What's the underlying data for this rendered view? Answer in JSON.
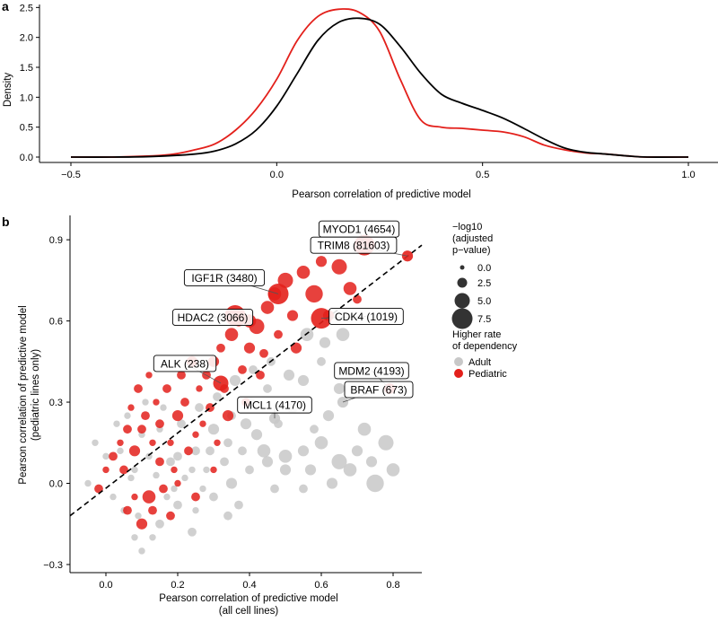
{
  "chart_data": [
    {
      "panel": "a",
      "type": "line",
      "title": "",
      "xlabel": "Pearson correlation of predictive model",
      "ylabel": "Density",
      "xlim": [
        -0.5,
        1.0
      ],
      "ylim": [
        0,
        2.55
      ],
      "xticks": [
        -0.5,
        0.0,
        0.5,
        1.0
      ],
      "xtick_labels": [
        "−0.5",
        "0.0",
        "0.5",
        "1.0"
      ],
      "yticks": [
        0.0,
        0.5,
        1.0,
        1.5,
        2.0,
        2.5
      ],
      "ytick_labels": [
        "0.0",
        "0.5",
        "1.0",
        "1.5",
        "2.0",
        "2.5"
      ],
      "series": [
        {
          "name": "Pediatric",
          "color": "#e3201b",
          "x": [
            -0.5,
            -0.4,
            -0.3,
            -0.25,
            -0.2,
            -0.15,
            -0.1,
            -0.05,
            0.0,
            0.05,
            0.1,
            0.15,
            0.2,
            0.25,
            0.3,
            0.35,
            0.4,
            0.45,
            0.5,
            0.55,
            0.6,
            0.65,
            0.7,
            0.75,
            0.8,
            0.85,
            0.9,
            1.0
          ],
          "y": [
            0.0,
            0.0,
            0.02,
            0.05,
            0.12,
            0.22,
            0.45,
            0.8,
            1.3,
            1.95,
            2.35,
            2.47,
            2.42,
            2.1,
            1.3,
            0.62,
            0.5,
            0.48,
            0.45,
            0.42,
            0.34,
            0.2,
            0.12,
            0.07,
            0.05,
            0.02,
            0.0,
            0.0
          ]
        },
        {
          "name": "Adult",
          "color": "#000000",
          "x": [
            -0.5,
            -0.4,
            -0.3,
            -0.2,
            -0.15,
            -0.1,
            -0.05,
            0.0,
            0.05,
            0.1,
            0.15,
            0.2,
            0.25,
            0.3,
            0.35,
            0.4,
            0.45,
            0.5,
            0.55,
            0.6,
            0.65,
            0.7,
            0.75,
            0.8,
            0.85,
            0.9,
            1.0
          ],
          "y": [
            0.0,
            0.0,
            0.01,
            0.05,
            0.1,
            0.22,
            0.45,
            0.85,
            1.4,
            1.95,
            2.25,
            2.32,
            2.22,
            1.85,
            1.4,
            1.05,
            0.9,
            0.78,
            0.65,
            0.48,
            0.3,
            0.15,
            0.08,
            0.05,
            0.02,
            0.0,
            0.0
          ]
        }
      ]
    },
    {
      "panel": "b",
      "type": "scatter",
      "title": "",
      "xlabel": "Pearson correlation of predictive model",
      "xlabel_sub": "(all cell lines)",
      "ylabel": "Pearson correlation of predictive model",
      "ylabel_sub": "(pediatric lines only)",
      "xlim": [
        -0.1,
        0.88
      ],
      "ylim": [
        -0.33,
        0.99
      ],
      "xticks": [
        0.0,
        0.2,
        0.4,
        0.6,
        0.8
      ],
      "xtick_labels": [
        "0.0",
        "0.2",
        "0.4",
        "0.6",
        "0.8"
      ],
      "yticks": [
        -0.3,
        0.0,
        0.3,
        0.6,
        0.9
      ],
      "ytick_labels": [
        "−0.3",
        "0.0",
        "0.3",
        "0.6",
        "0.9"
      ],
      "diagonal": {
        "style": "dashed",
        "x": [
          -0.1,
          0.88
        ],
        "y": [
          -0.12,
          0.88
        ]
      },
      "labeled_points": [
        {
          "label": "MYOD1 (4654)",
          "x": 0.72,
          "y": 0.88,
          "group": "Pediatric",
          "size": 7.5
        },
        {
          "label": "TRIM8 (81603)",
          "x": 0.84,
          "y": 0.84,
          "group": "Pediatric",
          "size": 3.0
        },
        {
          "label": "IGF1R (3480)",
          "x": 0.48,
          "y": 0.7,
          "group": "Pediatric",
          "size": 7.5
        },
        {
          "label": "HDAC2 (3066)",
          "x": 0.36,
          "y": 0.62,
          "group": "Pediatric",
          "size": 7.5
        },
        {
          "label": "CDK4 (1019)",
          "x": 0.6,
          "y": 0.61,
          "group": "Pediatric",
          "size": 7.5
        },
        {
          "label": "ALK (238)",
          "x": 0.32,
          "y": 0.37,
          "group": "Pediatric",
          "size": 5.0
        },
        {
          "label": "MDM2 (4193)",
          "x": 0.79,
          "y": 0.35,
          "group": "Pediatric",
          "size": 3.0
        },
        {
          "label": "MCL1 (4170)",
          "x": 0.47,
          "y": 0.24,
          "group": "Adult",
          "size": 3.0
        },
        {
          "label": "BRAF (673)",
          "x": 0.66,
          "y": 0.3,
          "group": "Adult",
          "size": 3.0
        }
      ],
      "legend": {
        "size_title": [
          "−log10",
          "(adjusted",
          "p−value)"
        ],
        "size_entries": [
          {
            "label": "0.0",
            "value": 0.0
          },
          {
            "label": "2.5",
            "value": 2.5
          },
          {
            "label": "5.0",
            "value": 5.0
          },
          {
            "label": "7.5",
            "value": 7.5
          }
        ],
        "color_title": [
          "Higher rate",
          "of dependency"
        ],
        "color_entries": [
          {
            "label": "Adult",
            "color": "#c8c8c8"
          },
          {
            "label": "Pediatric",
            "color": "#e3201b"
          }
        ],
        "placement": "right"
      },
      "unlabeled_points": {
        "note": "representative sample of remaining points",
        "pediatric": [
          [
            0.05,
            0.05,
            2
          ],
          [
            0.08,
            0.12,
            3
          ],
          [
            0.1,
            0.2,
            2
          ],
          [
            0.12,
            -0.05,
            4
          ],
          [
            0.15,
            0.08,
            2
          ],
          [
            0.18,
            0.15,
            1
          ],
          [
            0.2,
            0.25,
            3
          ],
          [
            0.22,
            0.3,
            2
          ],
          [
            0.25,
            0.18,
            1
          ],
          [
            0.28,
            0.4,
            2
          ],
          [
            0.3,
            0.45,
            3
          ],
          [
            0.32,
            0.5,
            2
          ],
          [
            0.35,
            0.55,
            4
          ],
          [
            0.38,
            0.42,
            2
          ],
          [
            0.4,
            0.5,
            3
          ],
          [
            0.42,
            0.58,
            5
          ],
          [
            0.45,
            0.65,
            4
          ],
          [
            0.5,
            0.75,
            5
          ],
          [
            0.55,
            0.78,
            4
          ],
          [
            0.6,
            0.82,
            3
          ],
          [
            0.65,
            0.8,
            5
          ],
          [
            0.7,
            0.68,
            2
          ],
          [
            0.58,
            0.7,
            6
          ],
          [
            0.52,
            0.62,
            3
          ],
          [
            0.48,
            0.55,
            2
          ],
          [
            0.44,
            0.48,
            2
          ],
          [
            0.37,
            0.6,
            3
          ],
          [
            0.33,
            0.35,
            2
          ],
          [
            0.27,
            0.22,
            1
          ],
          [
            0.23,
            0.12,
            2
          ],
          [
            0.19,
            0.05,
            1
          ],
          [
            0.16,
            -0.02,
            2
          ],
          [
            0.13,
            -0.1,
            2
          ],
          [
            0.1,
            -0.15,
            3
          ],
          [
            0.08,
            -0.05,
            1
          ],
          [
            0.06,
            0.2,
            2
          ],
          [
            0.04,
            0.15,
            1
          ],
          [
            0.02,
            0.1,
            2
          ],
          [
            0.0,
            0.05,
            1
          ],
          [
            -0.02,
            -0.02,
            2
          ],
          [
            0.11,
            0.25,
            2
          ],
          [
            0.14,
            0.3,
            1
          ],
          [
            0.17,
            0.35,
            2
          ],
          [
            0.21,
            0.4,
            2
          ],
          [
            0.24,
            0.45,
            3
          ],
          [
            0.26,
            0.35,
            1
          ],
          [
            0.29,
            0.28,
            2
          ],
          [
            0.31,
            0.15,
            1
          ],
          [
            0.34,
            0.25,
            3
          ],
          [
            0.39,
            0.3,
            2
          ],
          [
            0.09,
            0.35,
            2
          ],
          [
            0.12,
            0.4,
            1
          ],
          [
            0.07,
            0.28,
            1
          ],
          [
            0.15,
            0.22,
            2
          ],
          [
            0.2,
            0.0,
            1
          ],
          [
            0.25,
            -0.05,
            2
          ],
          [
            0.3,
            0.05,
            1
          ],
          [
            0.18,
            -0.12,
            2
          ],
          [
            0.13,
            0.15,
            1
          ],
          [
            0.06,
            -0.1,
            2
          ],
          [
            0.47,
            0.7,
            4
          ],
          [
            0.53,
            0.5,
            3
          ],
          [
            0.4,
            0.6,
            4
          ],
          [
            0.43,
            0.4,
            2
          ],
          [
            0.62,
            0.62,
            3
          ],
          [
            0.68,
            0.72,
            4
          ]
        ],
        "adult": [
          [
            0.0,
            0.1,
            1
          ],
          [
            -0.05,
            0.0,
            1
          ],
          [
            0.02,
            -0.05,
            1
          ],
          [
            0.05,
            -0.1,
            1
          ],
          [
            0.08,
            -0.2,
            1
          ],
          [
            0.1,
            -0.25,
            1
          ],
          [
            0.15,
            -0.15,
            2
          ],
          [
            0.2,
            -0.08,
            2
          ],
          [
            0.25,
            -0.1,
            1
          ],
          [
            0.3,
            -0.05,
            2
          ],
          [
            0.35,
            0.0,
            3
          ],
          [
            0.4,
            0.05,
            2
          ],
          [
            0.45,
            0.08,
            3
          ],
          [
            0.5,
            0.1,
            4
          ],
          [
            0.55,
            0.12,
            3
          ],
          [
            0.6,
            0.15,
            4
          ],
          [
            0.65,
            0.08,
            5
          ],
          [
            0.7,
            0.12,
            3
          ],
          [
            0.75,
            0.0,
            6
          ],
          [
            0.8,
            0.05,
            4
          ],
          [
            0.62,
            0.25,
            3
          ],
          [
            0.58,
            0.2,
            2
          ],
          [
            0.52,
            0.28,
            3
          ],
          [
            0.48,
            0.22,
            2
          ],
          [
            0.42,
            0.18,
            3
          ],
          [
            0.38,
            0.12,
            2
          ],
          [
            0.33,
            0.08,
            2
          ],
          [
            0.28,
            0.05,
            1
          ],
          [
            0.22,
            0.02,
            1
          ],
          [
            0.18,
            0.08,
            2
          ],
          [
            0.12,
            0.1,
            1
          ],
          [
            0.08,
            0.05,
            1
          ],
          [
            0.04,
            0.12,
            1
          ],
          [
            0.1,
            0.18,
            1
          ],
          [
            0.15,
            0.2,
            1
          ],
          [
            0.2,
            0.1,
            2
          ],
          [
            0.25,
            0.12,
            2
          ],
          [
            0.3,
            0.2,
            3
          ],
          [
            0.35,
            0.25,
            2
          ],
          [
            0.4,
            0.3,
            3
          ],
          [
            0.45,
            0.35,
            2
          ],
          [
            0.55,
            0.38,
            3
          ],
          [
            0.6,
            0.45,
            2
          ],
          [
            0.65,
            0.35,
            3
          ],
          [
            0.7,
            0.42,
            2
          ],
          [
            0.72,
            0.2,
            4
          ],
          [
            0.78,
            0.15,
            5
          ],
          [
            0.68,
            0.05,
            4
          ],
          [
            0.57,
            0.05,
            3
          ],
          [
            0.47,
            -0.02,
            2
          ],
          [
            0.37,
            -0.08,
            2
          ],
          [
            0.27,
            -0.02,
            1
          ],
          [
            0.17,
            -0.05,
            1
          ],
          [
            0.07,
            0.02,
            1
          ],
          [
            0.03,
            0.22,
            1
          ],
          [
            0.06,
            0.25,
            1
          ],
          [
            -0.03,
            0.15,
            1
          ],
          [
            0.11,
            0.3,
            1
          ],
          [
            0.16,
            0.28,
            1
          ],
          [
            0.21,
            0.22,
            2
          ],
          [
            0.26,
            0.28,
            2
          ],
          [
            0.31,
            0.32,
            2
          ],
          [
            0.36,
            0.38,
            3
          ],
          [
            0.41,
            0.42,
            2
          ],
          [
            0.46,
            0.45,
            2
          ],
          [
            0.51,
            0.4,
            3
          ],
          [
            0.56,
            0.55,
            4
          ],
          [
            0.61,
            0.52,
            3
          ],
          [
            0.66,
            0.55,
            4
          ],
          [
            0.44,
            0.12,
            4
          ],
          [
            0.39,
            0.22,
            3
          ],
          [
            0.34,
            0.15,
            2
          ],
          [
            0.29,
            0.12,
            2
          ],
          [
            0.24,
            0.05,
            1
          ],
          [
            0.19,
            -0.02,
            1
          ],
          [
            0.14,
            0.03,
            1
          ],
          [
            0.09,
            -0.12,
            1
          ],
          [
            0.13,
            -0.2,
            1
          ],
          [
            0.24,
            -0.18,
            2
          ],
          [
            0.34,
            -0.12,
            2
          ],
          [
            0.5,
            0.05,
            3
          ],
          [
            0.55,
            -0.02,
            2
          ],
          [
            0.63,
            0.0,
            3
          ],
          [
            0.74,
            0.08,
            3
          ]
        ]
      }
    }
  ],
  "panel_letters": {
    "a": "a",
    "b": "b"
  }
}
